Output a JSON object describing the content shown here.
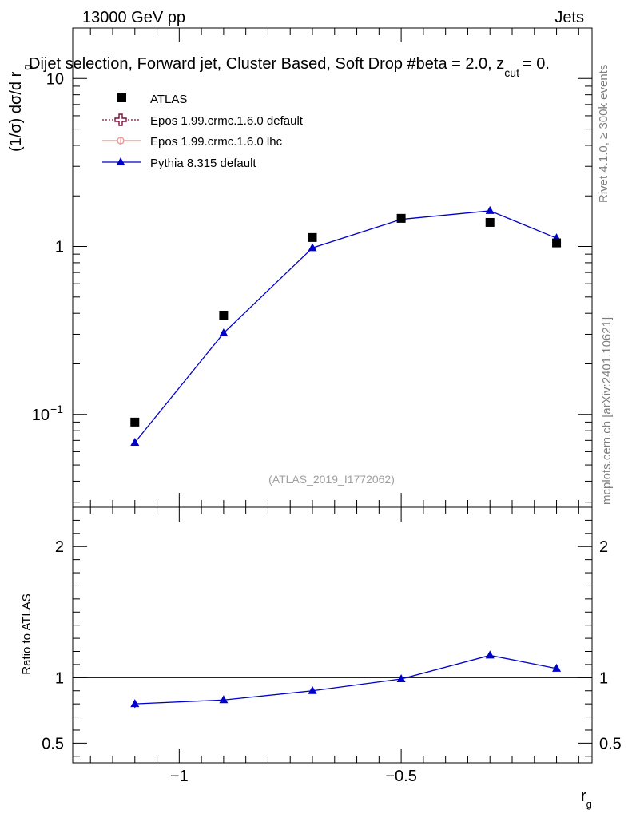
{
  "header": {
    "left": "13000 GeV pp",
    "right": "Jets",
    "title": "Dijet selection, Forward jet, Cluster Based, Soft Drop #beta = 2.0, z",
    "title_sub": "cut",
    "title_tail": "= 0."
  },
  "side_labels": {
    "rivet": "Rivet 4.1.0, ≥ 300k events",
    "mcplots": "mcplots.cern.ch [arXiv:2401.10621]"
  },
  "watermark": "(ATLAS_2019_I1772062)",
  "colors": {
    "atlas": "#000000",
    "epos_default": "#7a0f3a",
    "epos_lhc": "#ef8a8a",
    "pythia": "#0000cc"
  },
  "chart_data": [
    {
      "type": "scatter",
      "title": "Dijet selection, Forward jet, Cluster Based, Soft Drop #beta = 2.0, z_cut = 0.",
      "ylabel_main": "(1/σ) dσ/d r",
      "ylabel_sub": "g",
      "yscale": "log",
      "xlim": [
        -1.24,
        -0.07
      ],
      "ylim": [
        0.028,
        20
      ],
      "ytick_labels": [
        {
          "value": 0.1,
          "base": "10",
          "exp": "−1"
        },
        {
          "value": 1,
          "base": "1",
          "exp": ""
        },
        {
          "value": 10,
          "base": "10",
          "exp": ""
        }
      ],
      "series": [
        {
          "name": "ATLAS",
          "marker": "square",
          "x": [
            -1.1,
            -0.9,
            -0.7,
            -0.5,
            -0.3,
            -0.15
          ],
          "y": [
            0.09,
            0.39,
            1.13,
            1.47,
            1.39,
            1.05
          ]
        },
        {
          "name": "Epos 1.99.crmc.1.6.0 default",
          "marker": "open-cross",
          "line": "dotted",
          "x": [],
          "y": []
        },
        {
          "name": "Epos 1.99.crmc.1.6.0 lhc",
          "marker": "circle-cross",
          "line": "solid",
          "x": [],
          "y": []
        },
        {
          "name": "Pythia 8.315 default",
          "marker": "triangle",
          "line": "solid",
          "x": [
            -1.1,
            -0.9,
            -0.7,
            -0.5,
            -0.3,
            -0.15
          ],
          "y": [
            0.068,
            0.305,
            0.98,
            1.45,
            1.63,
            1.12
          ]
        }
      ]
    },
    {
      "type": "line",
      "ylabel": "Ratio to ATLAS",
      "xlabel_main": "r",
      "xlabel_sub": "g",
      "xlim": [
        -1.24,
        -0.07
      ],
      "ylim": [
        0.35,
        2.3
      ],
      "xtick_labels": [
        {
          "value": -1,
          "label": "−1"
        },
        {
          "value": -0.5,
          "label": "−0.5"
        }
      ],
      "ytick_labels": [
        {
          "value": 0.5,
          "label": "0.5"
        },
        {
          "value": 1,
          "label": "1"
        },
        {
          "value": 2,
          "label": "2"
        }
      ],
      "series": [
        {
          "name": "Pythia 8.315 default",
          "x": [
            -1.1,
            -0.9,
            -0.7,
            -0.5,
            -0.3,
            -0.15
          ],
          "y": [
            0.8,
            0.83,
            0.9,
            0.99,
            1.17,
            1.07
          ],
          "err": [
            0.03,
            0.01,
            0.01,
            0.01,
            0.015,
            0.01
          ]
        }
      ]
    }
  ]
}
